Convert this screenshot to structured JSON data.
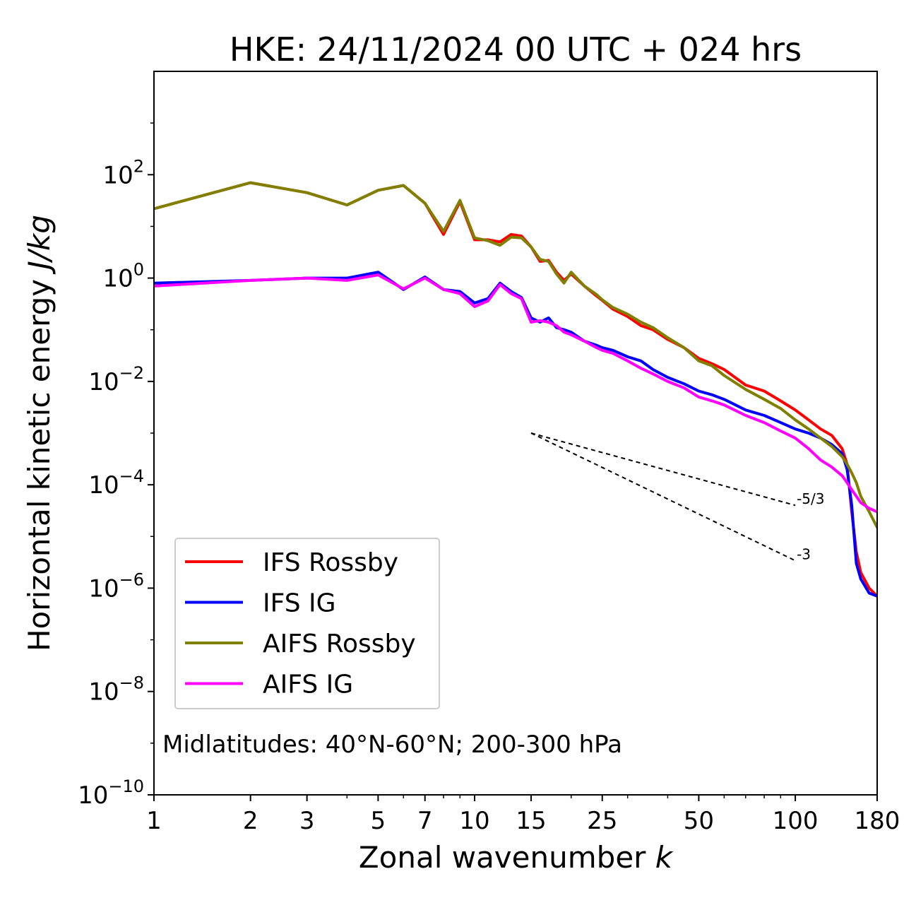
{
  "chart_data": {
    "type": "line",
    "title": "HKE: 24/11/2024 00 UTC + 024 hrs",
    "xlabel": "Zonal wavenumber",
    "xlabel_symbol": "k",
    "ylabel": "Horizontal kinetic energy",
    "ylabel_units": "J/kg",
    "x_scale": "log",
    "y_scale": "log",
    "xlim": [
      1,
      180
    ],
    "ylim": [
      1e-10,
      10000.0
    ],
    "xticks": [
      1,
      2,
      3,
      5,
      7,
      10,
      15,
      25,
      50,
      100,
      180
    ],
    "xtick_labels": [
      "1",
      "2",
      "3",
      "5",
      "7",
      "10",
      "15",
      "25",
      "50",
      "100",
      "180"
    ],
    "yticks": [
      {
        "value": 100.0,
        "base": "10",
        "exp": "2"
      },
      {
        "value": 1.0,
        "base": "10",
        "exp": "0"
      },
      {
        "value": 0.01,
        "base": "10",
        "exp": "−2"
      },
      {
        "value": 0.0001,
        "base": "10",
        "exp": "−4"
      },
      {
        "value": 1e-06,
        "base": "10",
        "exp": "−6"
      },
      {
        "value": 1e-08,
        "base": "10",
        "exp": "−8"
      },
      {
        "value": 1e-10,
        "base": "10",
        "exp": "−10"
      }
    ],
    "grid": false,
    "legend_position": "lower-left",
    "annotation": "Midlatitudes: 40°N-60°N; 200-300 hPa",
    "reference_lines": [
      {
        "label": "-5/3",
        "slope": -1.6667,
        "x": [
          15,
          100
        ],
        "y": [
          0.001,
          4e-05
        ]
      },
      {
        "label": "-3",
        "slope": -3,
        "x": [
          15,
          100
        ],
        "y": [
          0.001,
          3.4e-06
        ]
      }
    ],
    "series": [
      {
        "name": "IFS Rossby",
        "color": "#ff0000",
        "x": [
          1,
          2,
          3,
          4,
          5,
          6,
          7,
          8,
          9,
          10,
          11,
          12,
          13,
          14,
          15,
          16,
          17,
          18,
          19,
          20,
          22,
          24,
          25,
          27,
          30,
          33,
          36,
          40,
          45,
          50,
          55,
          60,
          70,
          80,
          90,
          100,
          110,
          120,
          130,
          140,
          145,
          150,
          155,
          160,
          170,
          180
        ],
        "y": [
          22,
          70,
          45,
          26,
          50,
          62,
          28,
          7,
          30,
          5.5,
          5.5,
          5,
          7,
          6.5,
          4,
          2.1,
          2.2,
          1.3,
          0.9,
          1.2,
          0.7,
          0.45,
          0.37,
          0.25,
          0.18,
          0.12,
          0.1,
          0.065,
          0.045,
          0.028,
          0.022,
          0.017,
          0.0085,
          0.0065,
          0.0042,
          0.0028,
          0.0018,
          0.0012,
          0.0009,
          0.0005,
          0.00025,
          3e-05,
          5e-06,
          2e-06,
          1e-06,
          7e-07
        ]
      },
      {
        "name": "IFS IG",
        "color": "#0000ff",
        "x": [
          1,
          2,
          3,
          4,
          5,
          6,
          7,
          8,
          9,
          10,
          11,
          12,
          13,
          14,
          15,
          16,
          17,
          18,
          19,
          20,
          22,
          24,
          25,
          27,
          30,
          33,
          36,
          40,
          45,
          50,
          55,
          60,
          70,
          80,
          90,
          100,
          110,
          120,
          130,
          140,
          145,
          150,
          155,
          160,
          170,
          180
        ],
        "y": [
          0.8,
          0.9,
          1.0,
          1.0,
          1.3,
          0.6,
          1.05,
          0.6,
          0.55,
          0.33,
          0.4,
          0.8,
          0.55,
          0.42,
          0.17,
          0.14,
          0.17,
          0.11,
          0.1,
          0.09,
          0.06,
          0.05,
          0.045,
          0.04,
          0.03,
          0.025,
          0.017,
          0.012,
          0.009,
          0.0065,
          0.0055,
          0.0045,
          0.0028,
          0.0022,
          0.0016,
          0.0012,
          0.001,
          0.0008,
          0.0006,
          0.0004,
          0.0002,
          4e-05,
          3e-06,
          1.5e-06,
          8e-07,
          7e-07
        ]
      },
      {
        "name": "AIFS Rossby",
        "color": "#808000",
        "x": [
          1,
          2,
          3,
          4,
          5,
          6,
          7,
          8,
          9,
          10,
          11,
          12,
          13,
          14,
          15,
          16,
          17,
          18,
          19,
          20,
          22,
          24,
          25,
          27,
          30,
          33,
          36,
          40,
          45,
          50,
          55,
          60,
          70,
          80,
          90,
          100,
          110,
          120,
          130,
          140,
          145,
          150,
          155,
          160,
          170,
          180
        ],
        "y": [
          22,
          70,
          45,
          26,
          50,
          62,
          28,
          8,
          32,
          6,
          5.3,
          4.3,
          6.2,
          6,
          4,
          2.3,
          2.1,
          1.2,
          0.8,
          1.3,
          0.7,
          0.48,
          0.38,
          0.27,
          0.2,
          0.14,
          0.11,
          0.07,
          0.045,
          0.025,
          0.02,
          0.013,
          0.007,
          0.0045,
          0.003,
          0.0018,
          0.0012,
          0.0008,
          0.00055,
          0.00035,
          0.00025,
          0.00017,
          0.00011,
          6e-05,
          3e-05,
          1.5e-05
        ]
      },
      {
        "name": "AIFS IG",
        "color": "#ff00ff",
        "x": [
          1,
          2,
          3,
          4,
          5,
          6,
          7,
          8,
          9,
          10,
          11,
          12,
          13,
          14,
          15,
          16,
          17,
          18,
          19,
          20,
          22,
          24,
          25,
          27,
          30,
          33,
          36,
          40,
          45,
          50,
          55,
          60,
          70,
          80,
          90,
          100,
          110,
          120,
          130,
          140,
          145,
          150,
          155,
          160,
          170,
          180
        ],
        "y": [
          0.7,
          0.9,
          1.0,
          0.9,
          1.15,
          0.62,
          1.0,
          0.6,
          0.5,
          0.28,
          0.36,
          0.75,
          0.5,
          0.4,
          0.14,
          0.15,
          0.14,
          0.12,
          0.09,
          0.08,
          0.06,
          0.045,
          0.04,
          0.035,
          0.025,
          0.018,
          0.014,
          0.01,
          0.0075,
          0.005,
          0.0042,
          0.0035,
          0.0022,
          0.0016,
          0.0011,
          0.0008,
          0.0005,
          0.0003,
          0.00022,
          0.00015,
          0.00011,
          8e-05,
          6e-05,
          4.5e-05,
          3.5e-05,
          3e-05
        ]
      }
    ]
  }
}
